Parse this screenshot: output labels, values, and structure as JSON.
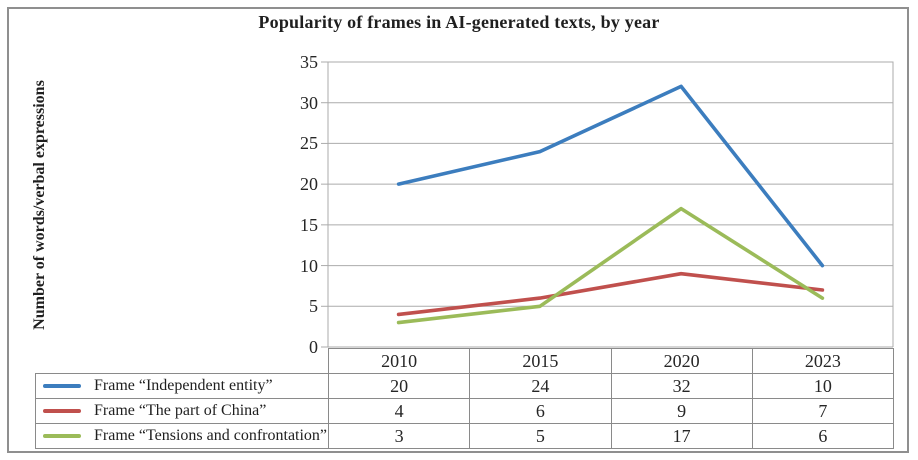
{
  "title": "Popularity of frames in AI-generated texts, by year",
  "chart_data": {
    "type": "line",
    "title": "Popularity of frames in AI-generated texts, by year",
    "ylabel": "Number of words/verbal expressions",
    "xlabel": "",
    "categories": [
      "2010",
      "2015",
      "2020",
      "2023"
    ],
    "series": [
      {
        "name": "Frame “Independent entity”",
        "color": "#3C7DBE",
        "values": [
          20,
          24,
          32,
          10
        ]
      },
      {
        "name": "Frame “The part of China”",
        "color": "#C0504D",
        "values": [
          4,
          6,
          9,
          7
        ]
      },
      {
        "name": "Frame “Tensions and confrontation”",
        "color": "#9BBB59",
        "values": [
          3,
          5,
          17,
          6
        ]
      }
    ],
    "ylim": [
      0,
      35
    ],
    "ytick_step": 5,
    "grid": true,
    "legend_position": "table-left",
    "gridline_color": "#ababab",
    "table_border_color": "#8a8a8a"
  }
}
